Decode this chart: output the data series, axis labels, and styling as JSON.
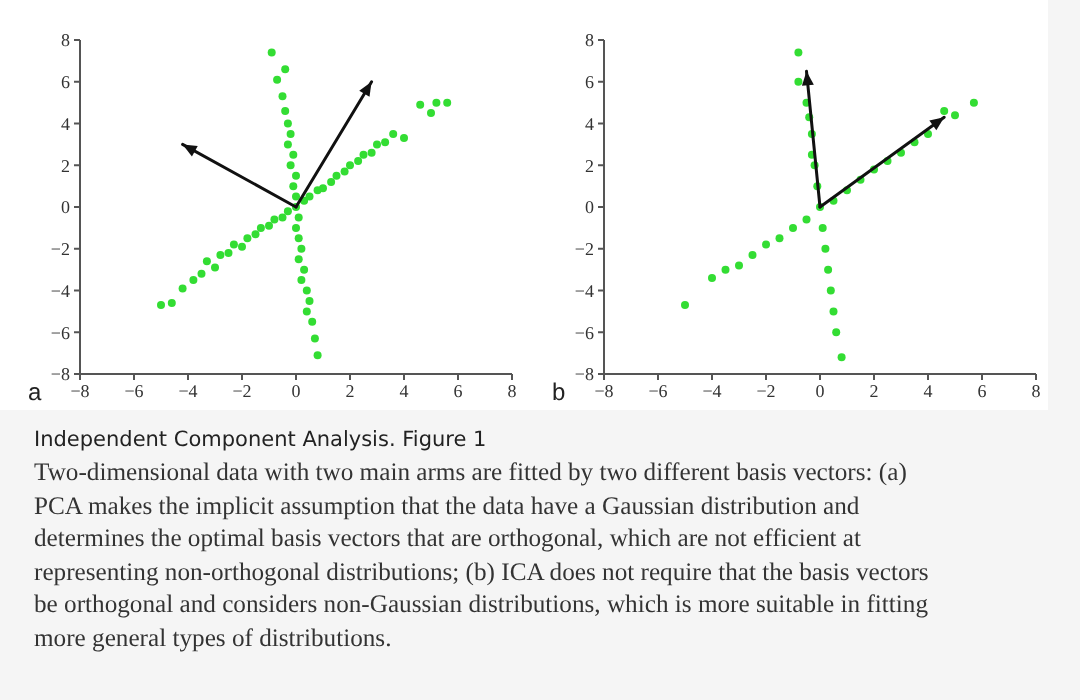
{
  "chart_data": [
    {
      "type": "scatter",
      "title": "a",
      "xlim": [
        -8,
        8
      ],
      "ylim": [
        -8,
        8
      ],
      "xticks": [
        -8,
        -6,
        -4,
        -2,
        0,
        2,
        4,
        6,
        8
      ],
      "yticks": [
        -8,
        -6,
        -4,
        -2,
        0,
        2,
        4,
        6,
        8
      ],
      "grid": false,
      "legend": false,
      "series": [
        {
          "color": "#33dd33",
          "marker": "circle",
          "x": [
            -5,
            -4.6,
            -4.2,
            -3.8,
            -3.5,
            -3.3,
            -3,
            -2.8,
            -2.5,
            -2.3,
            -2,
            -1.8,
            -1.5,
            -1.3,
            -1,
            -0.8,
            -0.5,
            -0.3,
            0.3,
            0.5,
            0.8,
            1,
            1.3,
            1.5,
            1.8,
            2,
            2.3,
            2.5,
            2.8,
            3,
            3.3,
            3.6,
            4,
            4.6,
            5,
            5.2,
            5.6,
            -0.9,
            -0.4,
            -0.7,
            -0.5,
            -0.4,
            -0.3,
            -0.2,
            -0.3,
            -0.1,
            -0.2,
            0,
            -0.1,
            0,
            0,
            0.1,
            0,
            0.1,
            0.2,
            0.1,
            0.3,
            0.2,
            0.4,
            0.5,
            0.4,
            0.6,
            0.7,
            0.8
          ],
          "values": [
            -4.7,
            -4.6,
            -3.9,
            -3.5,
            -3.2,
            -2.6,
            -2.9,
            -2.3,
            -2.2,
            -1.8,
            -1.9,
            -1.5,
            -1.3,
            -1,
            -0.9,
            -0.6,
            -0.5,
            -0.2,
            0.3,
            0.5,
            0.8,
            0.9,
            1.2,
            1.5,
            1.7,
            2,
            2.2,
            2.5,
            2.6,
            3,
            3.1,
            3.5,
            3.3,
            4.9,
            4.5,
            5,
            5,
            7.4,
            6.6,
            6.1,
            5.3,
            4.6,
            4,
            3.5,
            3,
            2.5,
            2,
            1.5,
            1,
            0.5,
            0,
            -0.5,
            -1,
            -1.5,
            -2,
            -2.5,
            -3,
            -3.5,
            -4,
            -4.5,
            -5,
            -5.5,
            -6.3,
            -7.1
          ]
        },
        {
          "type": "line",
          "color": "#111111",
          "marker": "none",
          "x": [
            0,
            2.8
          ],
          "values": [
            0,
            6
          ]
        },
        {
          "type": "line",
          "color": "#111111",
          "marker": "none",
          "x": [
            0,
            -4.2
          ],
          "values": [
            0,
            3
          ]
        }
      ]
    },
    {
      "type": "scatter",
      "title": "b",
      "xlim": [
        -8,
        8
      ],
      "ylim": [
        -8,
        8
      ],
      "xticks": [
        -8,
        -6,
        -4,
        -2,
        0,
        2,
        4,
        6,
        8
      ],
      "yticks": [
        -8,
        -6,
        -4,
        -2,
        0,
        2,
        4,
        6,
        8
      ],
      "grid": false,
      "legend": false,
      "series": [
        {
          "color": "#33dd33",
          "marker": "circle",
          "x": [
            -5,
            -4,
            -3.5,
            -3,
            -2.5,
            -2,
            -1.5,
            -1,
            -0.5,
            0.5,
            1,
            1.5,
            2,
            2.5,
            3,
            3.5,
            4,
            4.6,
            5,
            5.7,
            -0.8,
            -0.8,
            -0.5,
            -0.4,
            -0.3,
            -0.3,
            -0.2,
            -0.1,
            0,
            0.1,
            0.2,
            0.3,
            0.4,
            0.5,
            0.6,
            0.8
          ],
          "values": [
            -4.7,
            -3.4,
            -3,
            -2.8,
            -2.3,
            -1.8,
            -1.5,
            -1,
            -0.6,
            0.3,
            0.8,
            1.3,
            1.8,
            2.2,
            2.6,
            3.1,
            3.5,
            4.6,
            4.4,
            5,
            7.4,
            6,
            5,
            4.3,
            3.5,
            2.5,
            2,
            1,
            0,
            -1,
            -2,
            -3,
            -4,
            -5,
            -6,
            -7.2
          ]
        },
        {
          "type": "line",
          "color": "#111111",
          "marker": "none",
          "x": [
            0,
            -0.5
          ],
          "values": [
            0,
            6.5
          ]
        },
        {
          "type": "line",
          "color": "#111111",
          "marker": "none",
          "x": [
            0,
            4.6
          ],
          "values": [
            0,
            4.3
          ]
        }
      ]
    },
    {
      "type": "other",
      "title": "Independent Component Analysis. Figure 1",
      "annotations": [
        "Two-dimensional data with two main arms are fitted by two different basis vectors: (a) PCA makes the implicit assumption that the data have a Gaussian distribution and determines the optimal basis vectors that are orthogonal, which are not efficient at representing non-orthogonal distributions; (b) ICA does not require that the basis vectors be orthogonal and considers non-Gaussian distributions, which is more suitable in fitting more general types of distributions."
      ]
    }
  ]
}
